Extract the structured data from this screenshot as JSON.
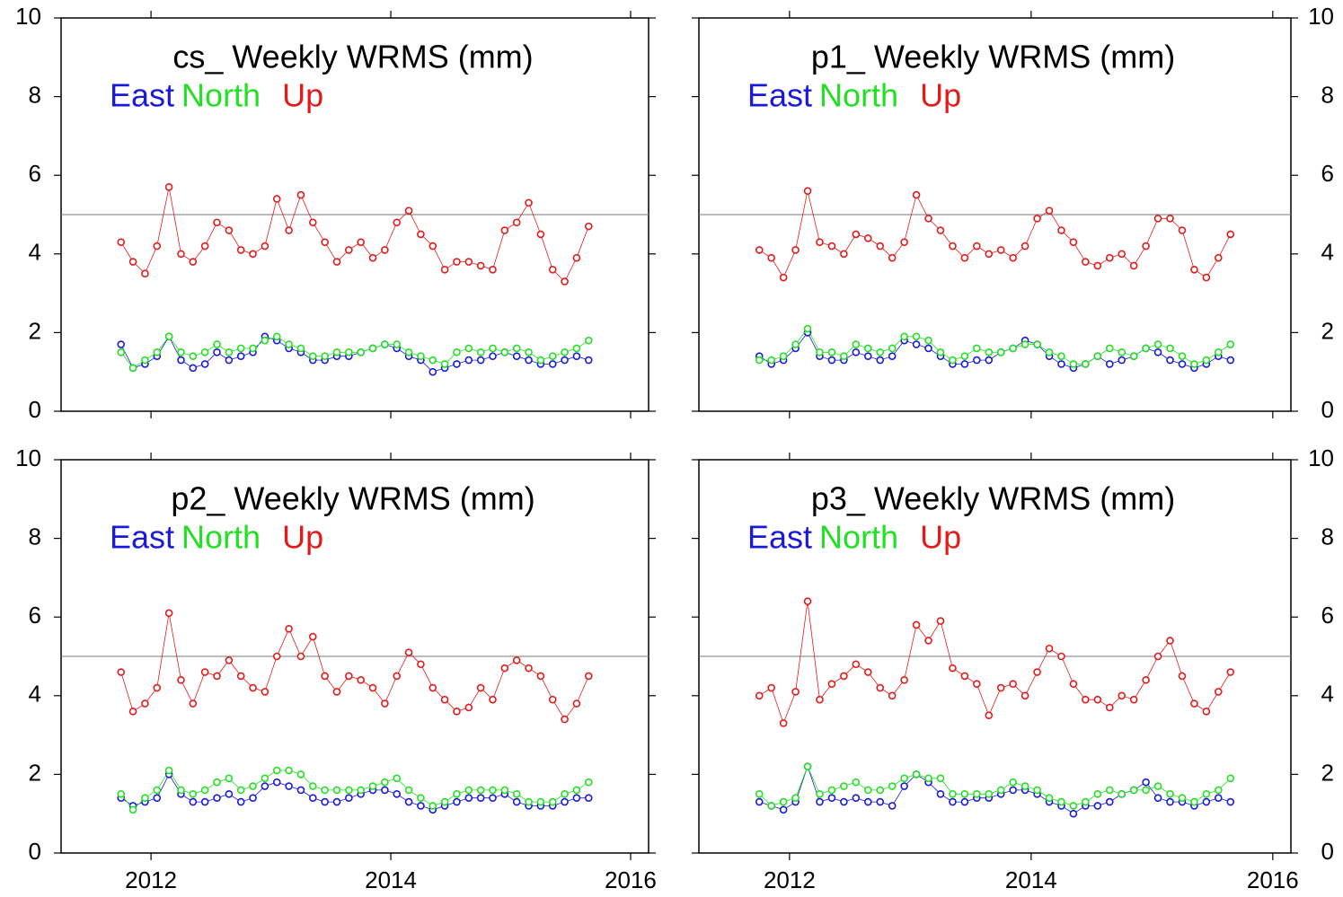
{
  "chart_data": [
    {
      "type": "line",
      "title": "cs_ Weekly WRMS (mm)",
      "x": [
        2011.75,
        2011.85,
        2011.95,
        2012.05,
        2012.15,
        2012.25,
        2012.35,
        2012.45,
        2012.55,
        2012.65,
        2012.75,
        2012.85,
        2012.95,
        2013.05,
        2013.15,
        2013.25,
        2013.35,
        2013.45,
        2013.55,
        2013.65,
        2013.75,
        2013.85,
        2013.95,
        2014.05,
        2014.15,
        2014.25,
        2014.35,
        2014.45,
        2014.55,
        2014.65,
        2014.75,
        2014.85,
        2014.95,
        2015.05,
        2015.15,
        2015.25,
        2015.35,
        2015.45,
        2015.55,
        2015.65
      ],
      "series": [
        {
          "name": "East",
          "color": "#1a1adc",
          "values": [
            1.7,
            1.1,
            1.2,
            1.4,
            1.9,
            1.3,
            1.1,
            1.2,
            1.5,
            1.3,
            1.4,
            1.5,
            1.9,
            1.8,
            1.6,
            1.5,
            1.3,
            1.3,
            1.4,
            1.4,
            1.5,
            1.6,
            1.7,
            1.6,
            1.4,
            1.3,
            1.0,
            1.1,
            1.2,
            1.3,
            1.3,
            1.4,
            1.5,
            1.4,
            1.3,
            1.2,
            1.2,
            1.3,
            1.4,
            1.3
          ]
        },
        {
          "name": "North",
          "color": "#22e022",
          "values": [
            1.5,
            1.1,
            1.3,
            1.5,
            1.9,
            1.5,
            1.4,
            1.5,
            1.7,
            1.5,
            1.6,
            1.6,
            1.8,
            1.9,
            1.7,
            1.6,
            1.4,
            1.4,
            1.5,
            1.5,
            1.5,
            1.6,
            1.7,
            1.7,
            1.5,
            1.4,
            1.3,
            1.2,
            1.5,
            1.6,
            1.5,
            1.6,
            1.5,
            1.6,
            1.5,
            1.3,
            1.4,
            1.5,
            1.6,
            1.8
          ]
        },
        {
          "name": "Up",
          "color": "#e41a1a",
          "values": [
            4.3,
            3.8,
            3.5,
            4.2,
            5.7,
            4.0,
            3.8,
            4.2,
            4.8,
            4.6,
            4.1,
            4.0,
            4.2,
            5.4,
            4.6,
            5.5,
            4.8,
            4.3,
            3.8,
            4.1,
            4.3,
            3.9,
            4.1,
            4.8,
            5.1,
            4.5,
            4.2,
            3.6,
            3.8,
            3.8,
            3.7,
            3.6,
            4.6,
            4.8,
            5.3,
            4.5,
            3.6,
            3.3,
            3.9,
            4.7
          ]
        }
      ],
      "xlim": [
        2011.25,
        2016.15
      ],
      "xticks": [
        2012,
        2014,
        2016
      ],
      "xticklabels": false,
      "ylim": [
        0,
        10
      ],
      "yticks": [
        0,
        2,
        4,
        6,
        8,
        10
      ],
      "yaxis_side": "left",
      "reference_line": 5
    },
    {
      "type": "line",
      "title": "p1_ Weekly WRMS (mm)",
      "x": [
        2011.75,
        2011.85,
        2011.95,
        2012.05,
        2012.15,
        2012.25,
        2012.35,
        2012.45,
        2012.55,
        2012.65,
        2012.75,
        2012.85,
        2012.95,
        2013.05,
        2013.15,
        2013.25,
        2013.35,
        2013.45,
        2013.55,
        2013.65,
        2013.75,
        2013.85,
        2013.95,
        2014.05,
        2014.15,
        2014.25,
        2014.35,
        2014.45,
        2014.55,
        2014.65,
        2014.75,
        2014.85,
        2014.95,
        2015.05,
        2015.15,
        2015.25,
        2015.35,
        2015.45,
        2015.55,
        2015.65
      ],
      "series": [
        {
          "name": "East",
          "color": "#1a1adc",
          "values": [
            1.4,
            1.2,
            1.3,
            1.6,
            2.0,
            1.4,
            1.3,
            1.3,
            1.5,
            1.4,
            1.3,
            1.4,
            1.8,
            1.7,
            1.6,
            1.4,
            1.2,
            1.2,
            1.3,
            1.3,
            1.5,
            1.6,
            1.8,
            1.7,
            1.4,
            1.2,
            1.1,
            1.2,
            1.4,
            1.2,
            1.3,
            1.4,
            1.6,
            1.5,
            1.3,
            1.2,
            1.1,
            1.2,
            1.4,
            1.3
          ]
        },
        {
          "name": "North",
          "color": "#22e022",
          "values": [
            1.3,
            1.3,
            1.4,
            1.7,
            2.1,
            1.5,
            1.5,
            1.4,
            1.7,
            1.6,
            1.5,
            1.6,
            1.9,
            1.9,
            1.8,
            1.5,
            1.3,
            1.4,
            1.6,
            1.5,
            1.5,
            1.6,
            1.7,
            1.7,
            1.5,
            1.4,
            1.2,
            1.2,
            1.4,
            1.6,
            1.5,
            1.4,
            1.6,
            1.7,
            1.6,
            1.4,
            1.2,
            1.3,
            1.5,
            1.7
          ]
        },
        {
          "name": "Up",
          "color": "#e41a1a",
          "values": [
            4.1,
            3.9,
            3.4,
            4.1,
            5.6,
            4.3,
            4.2,
            4.0,
            4.5,
            4.4,
            4.2,
            3.9,
            4.3,
            5.5,
            4.9,
            4.6,
            4.2,
            3.9,
            4.2,
            4.0,
            4.1,
            3.9,
            4.2,
            4.9,
            5.1,
            4.6,
            4.3,
            3.8,
            3.7,
            3.9,
            4.0,
            3.7,
            4.2,
            4.9,
            4.9,
            4.6,
            3.6,
            3.4,
            3.9,
            4.5
          ]
        }
      ],
      "xlim": [
        2011.25,
        2016.15
      ],
      "xticks": [
        2012,
        2014,
        2016
      ],
      "xticklabels": false,
      "ylim": [
        0,
        10
      ],
      "yticks": [
        0,
        2,
        4,
        6,
        8,
        10
      ],
      "yaxis_side": "right",
      "reference_line": 5
    },
    {
      "type": "line",
      "title": "p2_ Weekly WRMS (mm)",
      "x": [
        2011.75,
        2011.85,
        2011.95,
        2012.05,
        2012.15,
        2012.25,
        2012.35,
        2012.45,
        2012.55,
        2012.65,
        2012.75,
        2012.85,
        2012.95,
        2013.05,
        2013.15,
        2013.25,
        2013.35,
        2013.45,
        2013.55,
        2013.65,
        2013.75,
        2013.85,
        2013.95,
        2014.05,
        2014.15,
        2014.25,
        2014.35,
        2014.45,
        2014.55,
        2014.65,
        2014.75,
        2014.85,
        2014.95,
        2015.05,
        2015.15,
        2015.25,
        2015.35,
        2015.45,
        2015.55,
        2015.65
      ],
      "series": [
        {
          "name": "East",
          "color": "#1a1adc",
          "values": [
            1.4,
            1.2,
            1.3,
            1.4,
            2.0,
            1.5,
            1.3,
            1.3,
            1.4,
            1.5,
            1.3,
            1.4,
            1.7,
            1.8,
            1.7,
            1.6,
            1.4,
            1.3,
            1.3,
            1.4,
            1.5,
            1.6,
            1.6,
            1.5,
            1.3,
            1.2,
            1.1,
            1.2,
            1.3,
            1.4,
            1.4,
            1.4,
            1.5,
            1.3,
            1.2,
            1.2,
            1.2,
            1.3,
            1.4,
            1.4
          ]
        },
        {
          "name": "North",
          "color": "#22e022",
          "values": [
            1.5,
            1.1,
            1.4,
            1.6,
            2.1,
            1.6,
            1.5,
            1.6,
            1.8,
            1.9,
            1.6,
            1.7,
            1.9,
            2.1,
            2.1,
            2.0,
            1.7,
            1.6,
            1.6,
            1.6,
            1.6,
            1.7,
            1.8,
            1.9,
            1.6,
            1.4,
            1.2,
            1.3,
            1.5,
            1.6,
            1.6,
            1.6,
            1.6,
            1.5,
            1.3,
            1.3,
            1.3,
            1.5,
            1.6,
            1.8
          ]
        },
        {
          "name": "Up",
          "color": "#e41a1a",
          "values": [
            4.6,
            3.6,
            3.8,
            4.2,
            6.1,
            4.4,
            3.8,
            4.6,
            4.5,
            4.9,
            4.5,
            4.2,
            4.1,
            5.0,
            5.7,
            5.0,
            5.5,
            4.5,
            4.1,
            4.5,
            4.4,
            4.2,
            3.8,
            4.5,
            5.1,
            4.8,
            4.2,
            3.9,
            3.6,
            3.7,
            4.2,
            3.9,
            4.7,
            4.9,
            4.7,
            4.5,
            3.9,
            3.4,
            3.8,
            4.5
          ]
        }
      ],
      "xlim": [
        2011.25,
        2016.15
      ],
      "xticks": [
        2012,
        2014,
        2016
      ],
      "xticklabels": true,
      "ylim": [
        0,
        10
      ],
      "yticks": [
        0,
        2,
        4,
        6,
        8,
        10
      ],
      "yaxis_side": "left",
      "reference_line": 5
    },
    {
      "type": "line",
      "title": "p3_ Weekly WRMS (mm)",
      "x": [
        2011.75,
        2011.85,
        2011.95,
        2012.05,
        2012.15,
        2012.25,
        2012.35,
        2012.45,
        2012.55,
        2012.65,
        2012.75,
        2012.85,
        2012.95,
        2013.05,
        2013.15,
        2013.25,
        2013.35,
        2013.45,
        2013.55,
        2013.65,
        2013.75,
        2013.85,
        2013.95,
        2014.05,
        2014.15,
        2014.25,
        2014.35,
        2014.45,
        2014.55,
        2014.65,
        2014.75,
        2014.85,
        2014.95,
        2015.05,
        2015.15,
        2015.25,
        2015.35,
        2015.45,
        2015.55,
        2015.65
      ],
      "series": [
        {
          "name": "East",
          "color": "#1a1adc",
          "values": [
            1.3,
            1.2,
            1.1,
            1.3,
            2.2,
            1.3,
            1.4,
            1.3,
            1.4,
            1.3,
            1.3,
            1.2,
            1.7,
            2.0,
            1.8,
            1.5,
            1.3,
            1.3,
            1.4,
            1.4,
            1.5,
            1.6,
            1.6,
            1.5,
            1.3,
            1.2,
            1.0,
            1.2,
            1.2,
            1.3,
            1.5,
            1.6,
            1.8,
            1.4,
            1.3,
            1.3,
            1.2,
            1.3,
            1.4,
            1.3
          ]
        },
        {
          "name": "North",
          "color": "#22e022",
          "values": [
            1.5,
            1.2,
            1.3,
            1.4,
            2.2,
            1.5,
            1.6,
            1.7,
            1.8,
            1.6,
            1.6,
            1.7,
            1.9,
            2.0,
            1.9,
            1.9,
            1.5,
            1.5,
            1.5,
            1.5,
            1.6,
            1.8,
            1.7,
            1.6,
            1.4,
            1.3,
            1.2,
            1.3,
            1.5,
            1.6,
            1.5,
            1.6,
            1.6,
            1.7,
            1.5,
            1.4,
            1.3,
            1.5,
            1.6,
            1.9
          ]
        },
        {
          "name": "Up",
          "color": "#e41a1a",
          "values": [
            4.0,
            4.2,
            3.3,
            4.1,
            6.4,
            3.9,
            4.3,
            4.5,
            4.8,
            4.6,
            4.2,
            4.0,
            4.4,
            5.8,
            5.4,
            5.9,
            4.7,
            4.5,
            4.3,
            3.5,
            4.2,
            4.3,
            4.0,
            4.6,
            5.2,
            5.0,
            4.3,
            3.9,
            3.9,
            3.7,
            4.0,
            3.9,
            4.4,
            5.0,
            5.4,
            4.5,
            3.8,
            3.6,
            4.1,
            4.6
          ]
        }
      ],
      "xlim": [
        2011.25,
        2016.15
      ],
      "xticks": [
        2012,
        2014,
        2016
      ],
      "xticklabels": true,
      "ylim": [
        0,
        10
      ],
      "yticks": [
        0,
        2,
        4,
        6,
        8,
        10
      ],
      "yaxis_side": "right",
      "reference_line": 5
    }
  ]
}
